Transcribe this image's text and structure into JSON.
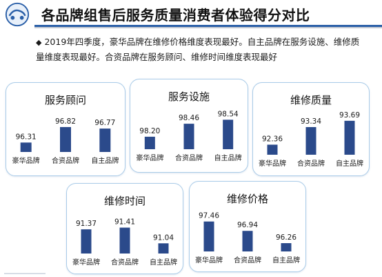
{
  "header": {
    "title": "各品牌组售后服务质量消费者体验得分对比"
  },
  "summary": {
    "bullet": "◆",
    "text": "2019年四季度，豪华品牌在维修价格维度表现最好。自主品牌在服务设施、维修质量维度表现最好。合资品牌在服务顾问、维修时间维度表现最好"
  },
  "colors": {
    "bar": "#2b4a8b",
    "card_border": "#a9cbe8",
    "header_accent": "#2a5fa8"
  },
  "chart_data": [
    {
      "type": "bar",
      "title": "服务顾问",
      "categories": [
        "豪华品牌",
        "合资品牌",
        "自主品牌"
      ],
      "values": [
        96.31,
        96.82,
        96.77
      ],
      "labels": [
        "96.31",
        "96.82",
        "96.77"
      ]
    },
    {
      "type": "bar",
      "title": "服务设施",
      "categories": [
        "豪华品牌",
        "合资品牌",
        "自主品牌"
      ],
      "values": [
        98.2,
        98.46,
        98.54
      ],
      "labels": [
        "98.20",
        "98.46",
        "98.54"
      ]
    },
    {
      "type": "bar",
      "title": "维修质量",
      "categories": [
        "豪华品牌",
        "合资品牌",
        "自主品牌"
      ],
      "values": [
        92.36,
        93.34,
        93.69
      ],
      "labels": [
        "92.36",
        "93.34",
        "93.69"
      ]
    },
    {
      "type": "bar",
      "title": "维修时间",
      "categories": [
        "豪华品牌",
        "合资品牌",
        "自主品牌"
      ],
      "values": [
        91.37,
        91.41,
        91.04
      ],
      "labels": [
        "91.37",
        "91.41",
        "91.04"
      ]
    },
    {
      "type": "bar",
      "title": "维修价格",
      "categories": [
        "豪华品牌",
        "合资品牌",
        "自主品牌"
      ],
      "values": [
        97.46,
        96.94,
        96.26
      ],
      "labels": [
        "97.46",
        "96.94",
        "96.26"
      ]
    }
  ]
}
